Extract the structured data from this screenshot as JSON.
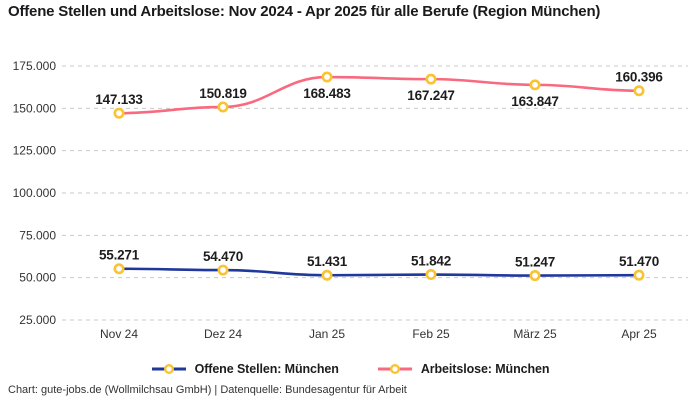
{
  "title": "Offene Stellen und Arbeitslose: Nov 2024 - Apr 2025 für alle Berufe (Region München)",
  "footer": "Chart: gute-jobs.de (Wollmilchsau GmbH) | Datenquelle: Bundesagentur für Arbeit",
  "colors": {
    "open_positions_line": "#20379b",
    "unemployed_line": "#f9697f",
    "marker_ring": "#f9c331",
    "marker_fill": "#ffffff",
    "grid": "#c9c9c9",
    "data_label_text": "#1d1d1f",
    "axis_text": "#333333"
  },
  "chart_data": {
    "type": "line",
    "title": "Offene Stellen und Arbeitslose: Nov 2024 - Apr 2025 für alle Berufe (Region München)",
    "categories": [
      "Nov 24",
      "Dez 24",
      "Jan 25",
      "Feb 25",
      "März 25",
      "Apr 25"
    ],
    "series": [
      {
        "name": "Offene Stellen: München",
        "values": [
          55271,
          54470,
          51431,
          51842,
          51247,
          51470
        ],
        "value_labels": [
          "55.271",
          "54.470",
          "51.431",
          "51.842",
          "51.247",
          "51.470"
        ],
        "label_positions": [
          "above",
          "above",
          "above",
          "above",
          "above",
          "above"
        ],
        "color_key": "open_positions_line"
      },
      {
        "name": "Arbeitslose: München",
        "values": [
          147133,
          150819,
          168483,
          167247,
          163847,
          160396
        ],
        "value_labels": [
          "147.133",
          "150.819",
          "168.483",
          "167.247",
          "163.847",
          "160.396"
        ],
        "label_positions": [
          "above",
          "above",
          "below",
          "below",
          "below",
          "above"
        ],
        "color_key": "unemployed_line"
      }
    ],
    "y_axis": {
      "min": 25000,
      "max": 175000,
      "step": 25000,
      "tick_labels": [
        "25.000",
        "50.000",
        "75.000",
        "100.000",
        "125.000",
        "150.000",
        "175.000"
      ]
    },
    "grid": true,
    "grid_style": "dashed",
    "legend_position": "bottom",
    "marker_style": "ring"
  }
}
